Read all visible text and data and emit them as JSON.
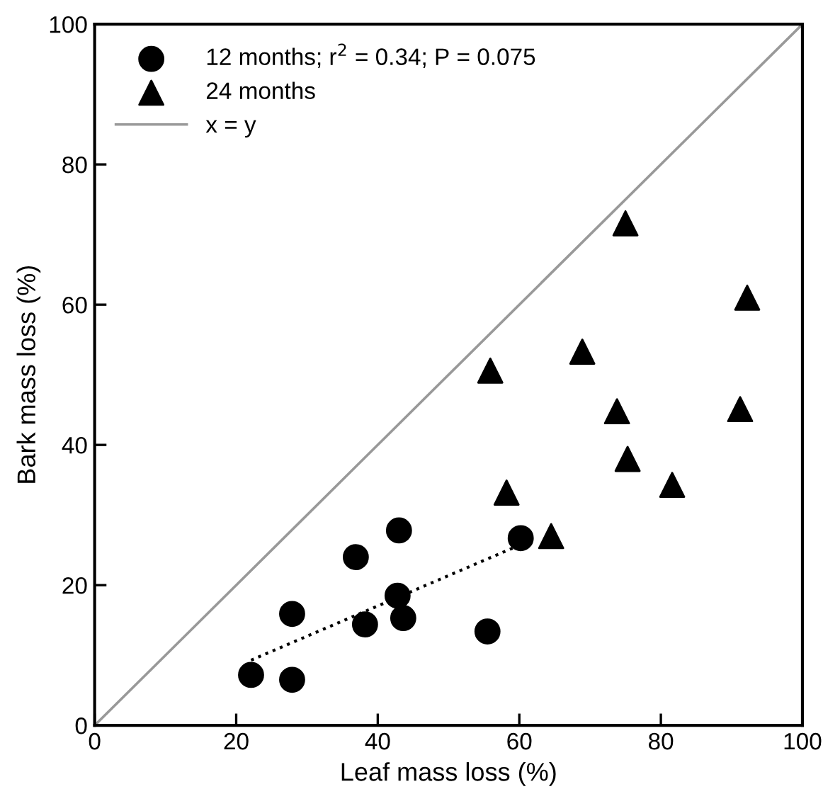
{
  "chart_data": {
    "type": "scatter",
    "xlabel": "Leaf mass loss (%)",
    "ylabel": "Bark mass loss (%)",
    "xlim": [
      0,
      100
    ],
    "ylim": [
      0,
      100
    ],
    "xticks": [
      0,
      20,
      40,
      60,
      80,
      100
    ],
    "yticks": [
      0,
      20,
      40,
      60,
      80,
      100
    ],
    "grid": false,
    "legend": "top left",
    "series": [
      {
        "name": "12 months; r$^{2}$ = 0.34; P = 0.075",
        "marker": "circle",
        "color": "#000000",
        "x": [
          22.1,
          27.9,
          27.9,
          36.9,
          38.2,
          43.0,
          42.8,
          43.6,
          55.5,
          60.2
        ],
        "values": [
          7.2,
          6.5,
          15.9,
          24.0,
          14.4,
          27.8,
          18.5,
          15.3,
          13.4,
          26.7
        ]
      },
      {
        "name": "24 months",
        "marker": "triangle",
        "color": "#000000",
        "x": [
          75.0,
          92.2,
          68.9,
          55.9,
          73.8,
          91.2,
          75.3,
          81.6,
          58.2,
          64.5
        ],
        "values": [
          71.6,
          61.0,
          53.3,
          50.6,
          44.8,
          45.1,
          38.0,
          34.3,
          33.2,
          27.0
        ]
      },
      {
        "name": "x = y",
        "type": "line",
        "marker": "none",
        "line_style": "solid",
        "color": "#999999",
        "x": [
          0,
          100
        ],
        "values": [
          0,
          100
        ]
      },
      {
        "type": "line",
        "marker": "none",
        "line_style": "dotted",
        "color": "#000000",
        "x": [
          22.1,
          59.8
        ],
        "values": [
          9.3,
          25.6
        ]
      }
    ]
  }
}
